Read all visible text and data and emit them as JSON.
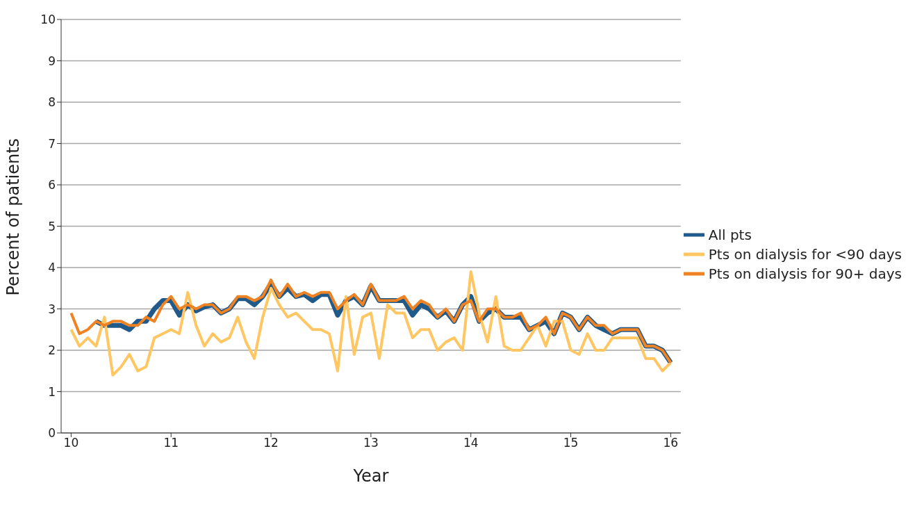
{
  "chart_data": {
    "type": "line",
    "xlabel": "Year",
    "ylabel": "Percent of patients",
    "x": [
      10,
      10.083,
      10.167,
      10.25,
      10.333,
      10.417,
      10.5,
      10.583,
      10.667,
      10.75,
      10.833,
      10.917,
      11,
      11.083,
      11.167,
      11.25,
      11.333,
      11.417,
      11.5,
      11.583,
      11.667,
      11.75,
      11.833,
      11.917,
      12,
      12.083,
      12.167,
      12.25,
      12.333,
      12.417,
      12.5,
      12.583,
      12.667,
      12.75,
      12.833,
      12.917,
      13,
      13.083,
      13.167,
      13.25,
      13.333,
      13.417,
      13.5,
      13.583,
      13.667,
      13.75,
      13.833,
      13.917,
      14,
      14.083,
      14.167,
      14.25,
      14.333,
      14.417,
      14.5,
      14.583,
      14.667,
      14.75,
      14.833,
      14.917,
      15,
      15.083,
      15.167,
      15.25,
      15.333,
      15.417,
      15.5,
      15.583,
      15.667,
      15.75,
      15.833,
      15.917,
      16
    ],
    "series": [
      {
        "name": "All pts",
        "color": "#1f5a8a",
        "values": [
          null,
          null,
          null,
          2.7,
          2.6,
          2.6,
          2.6,
          2.5,
          2.7,
          2.7,
          3.0,
          3.2,
          3.2,
          2.85,
          3.1,
          2.95,
          3.05,
          3.1,
          2.9,
          3.0,
          3.25,
          3.25,
          3.1,
          3.3,
          3.6,
          3.3,
          3.5,
          3.3,
          3.35,
          3.2,
          3.35,
          3.35,
          2.85,
          3.2,
          3.3,
          3.1,
          3.55,
          3.2,
          3.2,
          3.2,
          3.2,
          2.85,
          3.1,
          3.0,
          2.8,
          2.95,
          2.7,
          3.1,
          3.3,
          2.7,
          2.9,
          3.0,
          2.8,
          2.8,
          2.8,
          2.5,
          2.6,
          2.7,
          2.4,
          2.9,
          2.8,
          2.5,
          2.8,
          2.6,
          2.5,
          2.4,
          2.5,
          2.5,
          2.5,
          2.1,
          2.1,
          2.0,
          1.7
        ]
      },
      {
        "name": "Pts on dialysis for <90 days",
        "color": "#ffc662",
        "values": [
          2.5,
          2.1,
          2.3,
          2.1,
          2.8,
          1.4,
          1.6,
          1.9,
          1.5,
          1.6,
          2.3,
          2.4,
          2.5,
          2.4,
          3.4,
          2.6,
          2.1,
          2.4,
          2.2,
          2.3,
          2.8,
          2.2,
          1.8,
          2.8,
          3.5,
          3.1,
          2.8,
          2.9,
          2.7,
          2.5,
          2.5,
          2.4,
          1.5,
          3.3,
          1.9,
          2.8,
          2.9,
          1.8,
          3.1,
          2.9,
          2.9,
          2.3,
          2.5,
          2.5,
          2.0,
          2.2,
          2.3,
          2.0,
          3.9,
          2.9,
          2.2,
          3.3,
          2.1,
          2.0,
          2.0,
          2.3,
          2.6,
          2.1,
          2.7,
          2.7,
          2.0,
          1.9,
          2.4,
          2.0,
          2.0,
          2.3,
          2.3,
          2.3,
          2.3,
          1.8,
          1.8,
          1.5,
          1.7
        ]
      },
      {
        "name": "Pts on dialysis for 90+ days",
        "color": "#ef8324",
        "values": [
          2.9,
          2.4,
          2.5,
          2.7,
          2.6,
          2.7,
          2.7,
          2.6,
          2.6,
          2.8,
          2.7,
          3.1,
          3.3,
          3.0,
          3.1,
          3.0,
          3.1,
          3.1,
          2.9,
          3.0,
          3.3,
          3.3,
          3.2,
          3.3,
          3.7,
          3.3,
          3.6,
          3.3,
          3.4,
          3.3,
          3.4,
          3.4,
          3.0,
          3.2,
          3.35,
          3.1,
          3.6,
          3.2,
          3.2,
          3.2,
          3.3,
          3.0,
          3.2,
          3.1,
          2.8,
          3.0,
          2.7,
          3.1,
          3.2,
          2.7,
          3.0,
          3.0,
          2.8,
          2.8,
          2.9,
          2.5,
          2.6,
          2.8,
          2.4,
          2.9,
          2.8,
          2.5,
          2.8,
          2.6,
          2.6,
          2.4,
          2.5,
          2.5,
          2.5,
          2.1,
          2.1,
          2.0,
          1.7
        ]
      }
    ],
    "xlim": [
      9.9,
      16.1
    ],
    "xticks": [
      10,
      11,
      12,
      13,
      14,
      15,
      16
    ],
    "ylim": [
      0,
      10
    ],
    "yticks": [
      0,
      1,
      2,
      3,
      4,
      5,
      6,
      7,
      8,
      9,
      10
    ],
    "grid": "y",
    "legend": "right",
    "marker": "none",
    "line_style": "solid"
  }
}
